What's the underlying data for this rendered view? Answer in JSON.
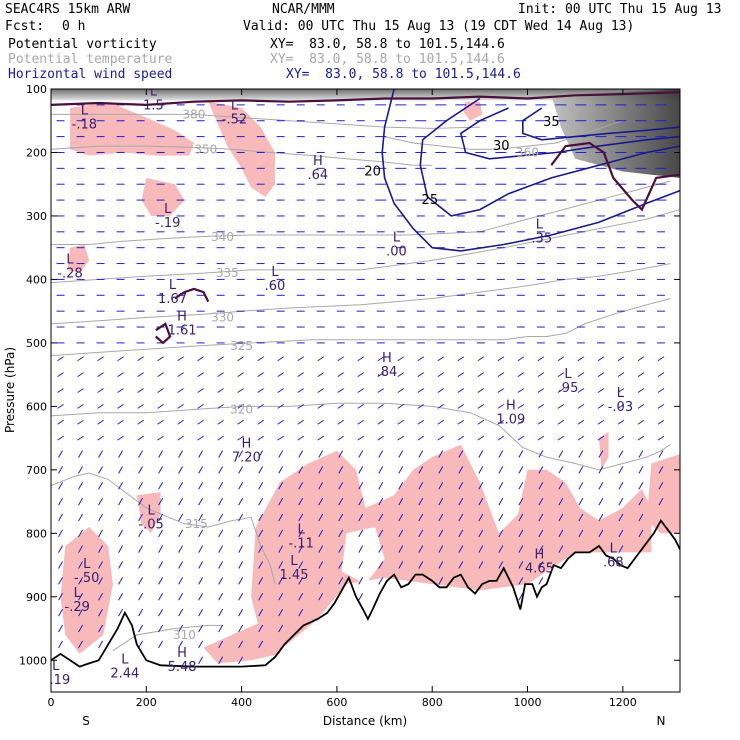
{
  "header": {
    "model": "SEAC4RS 15km ARW",
    "org": "NCAR/MMM",
    "init": "Init: 00 UTC Thu 15 Aug 13",
    "fcst_label": "Fcst:",
    "fcst_value": "0 h",
    "valid": "Valid: 00 UTC Thu 15 Aug 13 (19 CDT Wed 14 Aug 13)",
    "fields": [
      {
        "name": "Potential vorticity",
        "xy": "XY=  83.0, 58.8 to 101.5,144.6"
      },
      {
        "name": "Potential temperature",
        "xy": "XY=  83.0, 58.8 to 101.5,144.6"
      },
      {
        "name": "Horizontal wind speed",
        "xy": "XY=  83.0, 58.8 to 101.5,144.6"
      }
    ]
  },
  "colors": {
    "pv_fill": "#f7b9b9",
    "pv_contour": "#4a0f3a",
    "theta": "#a8a8a8",
    "wind_speed": "#1a1a8c",
    "wind_vector": "#1f1fd0",
    "terrain": "#000000",
    "label": "#3a2070"
  },
  "chart_data": {
    "type": "cross-section",
    "xlabel": "Distance (km)",
    "ylabel": "Pressure (hPa)",
    "xlim": [
      0,
      1320
    ],
    "ylim": [
      1050,
      100
    ],
    "x_ticks": [
      0,
      200,
      400,
      600,
      800,
      1000,
      1200
    ],
    "y_ticks": [
      100,
      200,
      300,
      400,
      500,
      600,
      700,
      800,
      900,
      1000
    ],
    "endpoints": {
      "left": "S",
      "right": "N"
    },
    "terrain_surface": [
      [
        0,
        1000
      ],
      [
        20,
        990
      ],
      [
        40,
        1000
      ],
      [
        60,
        1010
      ],
      [
        80,
        1005
      ],
      [
        100,
        1000
      ],
      [
        120,
        975
      ],
      [
        140,
        950
      ],
      [
        155,
        925
      ],
      [
        170,
        945
      ],
      [
        180,
        975
      ],
      [
        200,
        1000
      ],
      [
        230,
        1008
      ],
      [
        300,
        1010
      ],
      [
        400,
        1010
      ],
      [
        450,
        1008
      ],
      [
        470,
        995
      ],
      [
        490,
        975
      ],
      [
        510,
        960
      ],
      [
        530,
        945
      ],
      [
        545,
        940
      ],
      [
        560,
        935
      ],
      [
        580,
        925
      ],
      [
        595,
        910
      ],
      [
        610,
        890
      ],
      [
        625,
        870
      ],
      [
        640,
        900
      ],
      [
        655,
        920
      ],
      [
        665,
        935
      ],
      [
        675,
        920
      ],
      [
        690,
        895
      ],
      [
        705,
        875
      ],
      [
        720,
        865
      ],
      [
        735,
        885
      ],
      [
        750,
        880
      ],
      [
        765,
        865
      ],
      [
        780,
        865
      ],
      [
        800,
        875
      ],
      [
        815,
        885
      ],
      [
        830,
        885
      ],
      [
        845,
        870
      ],
      [
        860,
        865
      ],
      [
        875,
        885
      ],
      [
        890,
        895
      ],
      [
        905,
        880
      ],
      [
        920,
        875
      ],
      [
        935,
        875
      ],
      [
        950,
        855
      ],
      [
        970,
        885
      ],
      [
        985,
        920
      ],
      [
        995,
        880
      ],
      [
        1010,
        880
      ],
      [
        1020,
        900
      ],
      [
        1030,
        885
      ],
      [
        1040,
        880
      ],
      [
        1055,
        850
      ],
      [
        1070,
        855
      ],
      [
        1085,
        840
      ],
      [
        1100,
        830
      ],
      [
        1115,
        830
      ],
      [
        1130,
        830
      ],
      [
        1150,
        820
      ],
      [
        1165,
        835
      ],
      [
        1180,
        840
      ],
      [
        1195,
        850
      ],
      [
        1210,
        855
      ],
      [
        1230,
        835
      ],
      [
        1250,
        815
      ],
      [
        1265,
        800
      ],
      [
        1280,
        780
      ],
      [
        1290,
        790
      ],
      [
        1300,
        800
      ],
      [
        1310,
        810
      ],
      [
        1320,
        825
      ]
    ],
    "theta_contours": [
      {
        "level": 310,
        "label_at": [
          280,
          960
        ],
        "points": [
          [
            130,
            985
          ],
          [
            180,
            960
          ],
          [
            260,
            950
          ],
          [
            330,
            945
          ],
          [
            360,
            945
          ]
        ]
      },
      {
        "level": 315,
        "label_at": [
          305,
          785
        ],
        "points": [
          [
            0,
            725
          ],
          [
            50,
            710
          ],
          [
            80,
            705
          ],
          [
            120,
            715
          ],
          [
            200,
            760
          ],
          [
            280,
            785
          ],
          [
            330,
            790
          ],
          [
            380,
            780
          ],
          [
            420,
            775
          ],
          [
            440,
            820
          ],
          [
            460,
            850
          ],
          [
            470,
            880
          ]
        ]
      },
      {
        "level": 320,
        "label_at": [
          400,
          605
        ],
        "points": [
          [
            0,
            615
          ],
          [
            100,
            610
          ],
          [
            200,
            610
          ],
          [
            300,
            605
          ],
          [
            400,
            600
          ],
          [
            500,
            600
          ],
          [
            600,
            595
          ],
          [
            700,
            595
          ],
          [
            800,
            600
          ],
          [
            880,
            610
          ],
          [
            940,
            630
          ],
          [
            990,
            665
          ],
          [
            1040,
            680
          ],
          [
            1100,
            690
          ],
          [
            1150,
            700
          ],
          [
            1200,
            690
          ],
          [
            1250,
            680
          ],
          [
            1280,
            670
          ],
          [
            1300,
            660
          ]
        ]
      },
      {
        "level": 325,
        "label_at": [
          400,
          505
        ],
        "points": [
          [
            0,
            520
          ],
          [
            100,
            515
          ],
          [
            200,
            510
          ],
          [
            300,
            505
          ],
          [
            420,
            500
          ],
          [
            550,
            495
          ],
          [
            700,
            495
          ],
          [
            850,
            495
          ],
          [
            950,
            495
          ],
          [
            1000,
            490
          ],
          [
            1040,
            490
          ],
          [
            1080,
            485
          ],
          [
            1120,
            470
          ],
          [
            1180,
            455
          ],
          [
            1250,
            440
          ],
          [
            1300,
            430
          ]
        ]
      },
      {
        "level": 330,
        "label_at": [
          360,
          460
        ],
        "points": [
          [
            0,
            470
          ],
          [
            100,
            465
          ],
          [
            200,
            460
          ],
          [
            320,
            455
          ],
          [
            400,
            450
          ],
          [
            500,
            445
          ],
          [
            650,
            440
          ],
          [
            800,
            430
          ],
          [
            900,
            420
          ],
          [
            1000,
            410
          ],
          [
            1080,
            400
          ],
          [
            1150,
            395
          ],
          [
            1230,
            385
          ],
          [
            1300,
            375
          ]
        ]
      },
      {
        "level": 335,
        "label_at": [
          370,
          390
        ],
        "points": [
          [
            0,
            405
          ],
          [
            100,
            400
          ],
          [
            200,
            395
          ],
          [
            320,
            390
          ],
          [
            420,
            385
          ],
          [
            520,
            385
          ],
          [
            650,
            385
          ],
          [
            800,
            370
          ],
          [
            950,
            350
          ],
          [
            1050,
            335
          ],
          [
            1150,
            320
          ],
          [
            1250,
            305
          ],
          [
            1320,
            290
          ]
        ]
      },
      {
        "level": 340,
        "label_at": [
          360,
          333
        ],
        "points": [
          [
            0,
            345
          ],
          [
            80,
            345
          ],
          [
            150,
            340
          ],
          [
            250,
            335
          ],
          [
            330,
            332
          ],
          [
            420,
            330
          ],
          [
            500,
            330
          ],
          [
            600,
            330
          ],
          [
            750,
            330
          ],
          [
            900,
            325
          ],
          [
            1000,
            305
          ],
          [
            1100,
            285
          ],
          [
            1200,
            265
          ],
          [
            1300,
            245
          ]
        ]
      },
      {
        "level": 350,
        "label_at": [
          325,
          195
        ],
        "points": [
          [
            0,
            195
          ],
          [
            100,
            190
          ],
          [
            200,
            190
          ],
          [
            300,
            192
          ],
          [
            380,
            195
          ],
          [
            460,
            200
          ],
          [
            550,
            205
          ],
          [
            620,
            210
          ],
          [
            700,
            215
          ],
          [
            760,
            220
          ],
          [
            800,
            220
          ]
        ]
      },
      {
        "level": 360,
        "label_at": [
          1000,
          200
        ],
        "points": [
          [
            700,
            175
          ],
          [
            760,
            185
          ],
          [
            820,
            190
          ],
          [
            880,
            195
          ],
          [
            940,
            195
          ],
          [
            1000,
            190
          ],
          [
            1060,
            185
          ],
          [
            1120,
            170
          ],
          [
            1200,
            150
          ]
        ]
      },
      {
        "level": 380,
        "label_at": [
          300,
          140
        ],
        "points": [
          [
            0,
            140
          ],
          [
            100,
            140
          ],
          [
            200,
            140
          ],
          [
            300,
            140
          ],
          [
            400,
            145
          ],
          [
            500,
            150
          ],
          [
            600,
            155
          ],
          [
            700,
            160
          ],
          [
            800,
            162
          ],
          [
            900,
            160
          ]
        ]
      }
    ],
    "wind_speed_contours": [
      {
        "level": 20,
        "label_at": [
          675,
          230
        ],
        "points": [
          [
            720,
            100
          ],
          [
            700,
            160
          ],
          [
            695,
            200
          ],
          [
            700,
            240
          ],
          [
            720,
            280
          ],
          [
            760,
            320
          ],
          [
            800,
            350
          ],
          [
            860,
            355
          ],
          [
            950,
            345
          ],
          [
            1050,
            330
          ],
          [
            1150,
            310
          ],
          [
            1250,
            280
          ],
          [
            1320,
            260
          ]
        ]
      },
      {
        "level": 25,
        "label_at": [
          795,
          275
        ],
        "points": [
          [
            900,
            115
          ],
          [
            830,
            150
          ],
          [
            780,
            180
          ],
          [
            775,
            220
          ],
          [
            790,
            270
          ],
          [
            840,
            300
          ],
          [
            900,
            290
          ],
          [
            960,
            265
          ],
          [
            1050,
            240
          ],
          [
            1150,
            220
          ],
          [
            1250,
            200
          ],
          [
            1320,
            190
          ]
        ]
      },
      {
        "level": 30,
        "label_at": [
          945,
          190
        ],
        "points": [
          [
            960,
            130
          ],
          [
            900,
            150
          ],
          [
            860,
            170
          ],
          [
            870,
            200
          ],
          [
            920,
            210
          ],
          [
            990,
            205
          ],
          [
            1060,
            200
          ],
          [
            1150,
            190
          ],
          [
            1250,
            180
          ],
          [
            1320,
            175
          ]
        ]
      },
      {
        "level": 35,
        "label_at": [
          1050,
          152
        ],
        "points": [
          [
            1030,
            130
          ],
          [
            990,
            150
          ],
          [
            990,
            170
          ],
          [
            1030,
            180
          ],
          [
            1100,
            175
          ],
          [
            1170,
            170
          ],
          [
            1250,
            165
          ],
          [
            1320,
            160
          ]
        ]
      }
    ],
    "pv_labels": [
      {
        "type": "L",
        "value": "1.5",
        "at": [
          215,
          110
        ]
      },
      {
        "type": "L",
        "value": "-.18",
        "at": [
          70,
          140
        ]
      },
      {
        "type": "L",
        "value": "-.52",
        "at": [
          385,
          132
        ]
      },
      {
        "type": "H",
        "value": ".64",
        "at": [
          560,
          220
        ]
      },
      {
        "type": "L",
        "value": "-.19",
        "at": [
          245,
          295
        ]
      },
      {
        "type": "L",
        "value": "-.28",
        "at": [
          40,
          375
        ]
      },
      {
        "type": "L",
        "value": ".00",
        "at": [
          725,
          340
        ]
      },
      {
        "type": "L",
        "value": "-.35",
        "at": [
          1025,
          320
        ]
      },
      {
        "type": "L",
        "value": "1.67",
        "at": [
          255,
          415
        ]
      },
      {
        "type": "H",
        "value": "1.61",
        "at": [
          275,
          465
        ]
      },
      {
        "type": "L",
        "value": ".60",
        "at": [
          470,
          395
        ]
      },
      {
        "type": "H",
        "value": ".84",
        "at": [
          705,
          530
        ]
      },
      {
        "type": "L",
        "value": ".95",
        "at": [
          1085,
          555
        ]
      },
      {
        "type": "H",
        "value": "1.09",
        "at": [
          965,
          605
        ]
      },
      {
        "type": "L",
        "value": "-.03",
        "at": [
          1195,
          585
        ]
      },
      {
        "type": "H",
        "value": "7.20",
        "at": [
          410,
          665
        ]
      },
      {
        "type": "L",
        "value": "-.05",
        "at": [
          210,
          770
        ]
      },
      {
        "type": "L",
        "value": "-.11",
        "at": [
          525,
          800
        ]
      },
      {
        "type": "L",
        "value": "1.45",
        "at": [
          510,
          850
        ]
      },
      {
        "type": "L",
        "value": "-.50",
        "at": [
          75,
          855
        ]
      },
      {
        "type": "L",
        "value": "-.29",
        "at": [
          55,
          900
        ]
      },
      {
        "type": "H",
        "value": "4.65",
        "at": [
          1025,
          840
        ]
      },
      {
        "type": "L",
        "value": ".68",
        "at": [
          1180,
          830
        ]
      },
      {
        "type": "L",
        "value": "4.19",
        "at": [
          10,
          1015
        ]
      },
      {
        "type": "L",
        "value": "2.44",
        "at": [
          155,
          1005
        ]
      },
      {
        "type": "H",
        "value": "5.48",
        "at": [
          275,
          995
        ]
      }
    ]
  }
}
